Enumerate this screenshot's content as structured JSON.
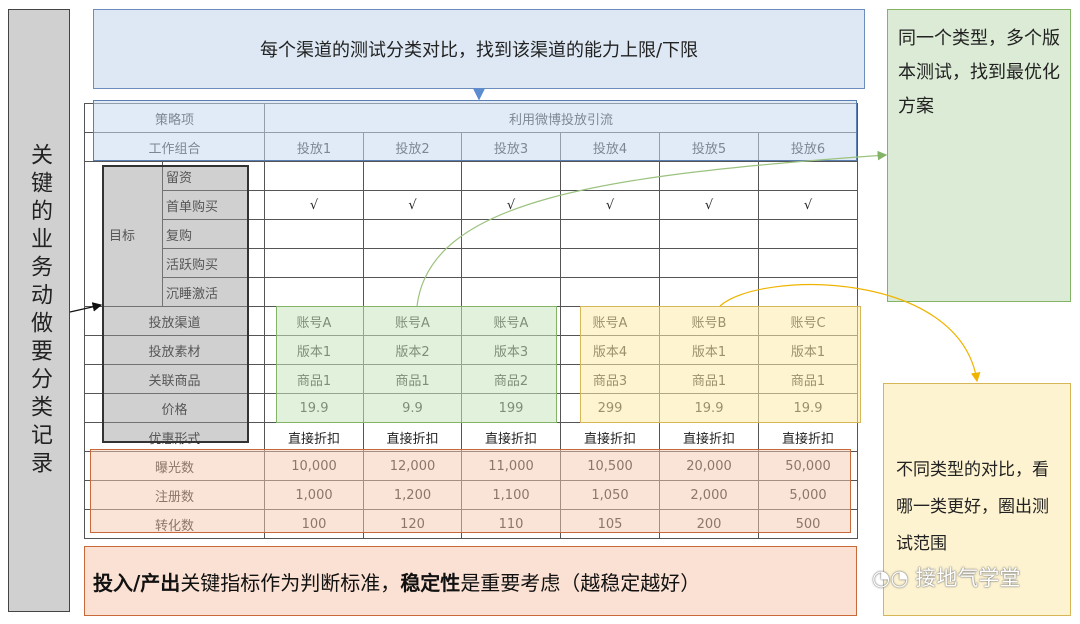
{
  "left_label": "关键的业务动做要分类记录",
  "top_banner": "每个渠道的测试分类对比，找到该渠道的能力上限/下限",
  "right_top_note": "同一个类型，多个版本测试，找到最优化方案",
  "right_bottom_note": "不同类型的对比，看哪一类更好，圈出测试范围",
  "bottom_banner": {
    "bold1": "投入/产出",
    "text1": "关键指标作为判断标准，",
    "bold2": "稳定性",
    "text2": "是重要考虑（越稳定越好）"
  },
  "watermark": "接地气学堂",
  "table": {
    "strategy_label": "策略项",
    "strategy_value": "利用微博投放引流",
    "group_label": "工作组合",
    "columns": [
      "投放1",
      "投放2",
      "投放3",
      "投放4",
      "投放5",
      "投放6"
    ],
    "goal_label": "目标",
    "goal_rows": [
      {
        "label": "留资",
        "values": [
          "",
          "",
          "",
          "",
          "",
          ""
        ]
      },
      {
        "label": "首单购买",
        "values": [
          "√",
          "√",
          "√",
          "√",
          "√",
          "√"
        ]
      },
      {
        "label": "复购",
        "values": [
          "",
          "",
          "",
          "",
          "",
          ""
        ]
      },
      {
        "label": "活跃购买",
        "values": [
          "",
          "",
          "",
          "",
          "",
          ""
        ]
      },
      {
        "label": "沉睡激活",
        "values": [
          "",
          "",
          "",
          "",
          "",
          ""
        ]
      }
    ],
    "rows": [
      {
        "label": "投放渠道",
        "values": [
          "账号A",
          "账号A",
          "账号A",
          "账号A",
          "账号B",
          "账号C"
        ]
      },
      {
        "label": "投放素材",
        "values": [
          "版本1",
          "版本2",
          "版本3",
          "版本4",
          "版本1",
          "版本1"
        ]
      },
      {
        "label": "关联商品",
        "values": [
          "商品1",
          "商品1",
          "商品2",
          "商品3",
          "商品1",
          "商品1"
        ]
      },
      {
        "label": "价格",
        "values": [
          "19.9",
          "9.9",
          "199",
          "299",
          "19.9",
          "19.9"
        ]
      },
      {
        "label": "优惠形式",
        "values": [
          "直接折扣",
          "直接折扣",
          "直接折扣",
          "直接折扣",
          "直接折扣",
          "直接折扣"
        ]
      },
      {
        "label": "曝光数",
        "values": [
          "10,000",
          "12,000",
          "11,000",
          "10,500",
          "20,000",
          "50,000"
        ]
      },
      {
        "label": "注册数",
        "values": [
          "1,000",
          "1,200",
          "1,100",
          "1,050",
          "2,000",
          "5,000"
        ]
      },
      {
        "label": "转化数",
        "values": [
          "100",
          "120",
          "110",
          "105",
          "200",
          "500"
        ]
      }
    ]
  }
}
